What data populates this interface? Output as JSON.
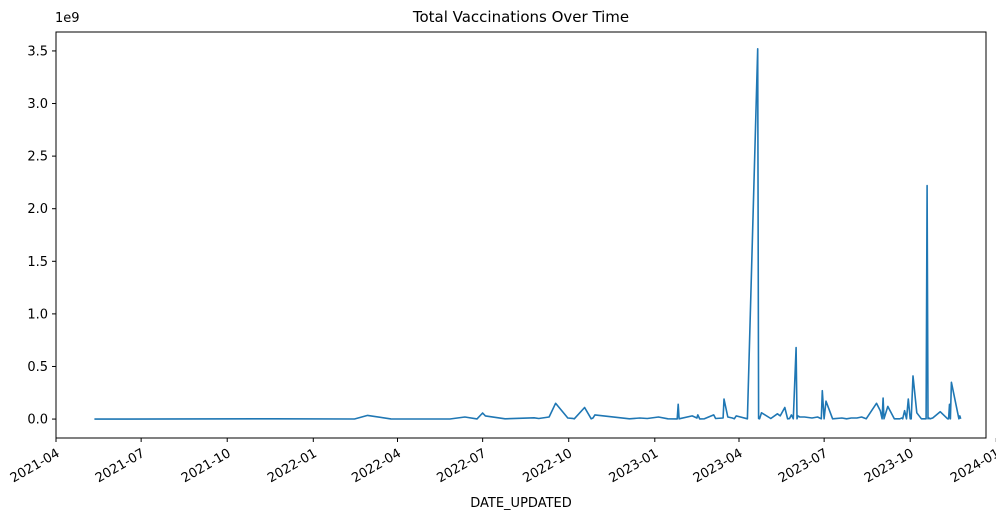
{
  "chart_data": {
    "type": "line",
    "title": "Total Vaccinations Over Time",
    "xlabel": "DATE_UPDATED",
    "ylabel": "",
    "y_offset_text": "1e9",
    "ylim": [
      -0.18,
      3.68
    ],
    "xlim": [
      "2021-04-01",
      "2023-12-21"
    ],
    "grid": false,
    "series_color": "#1f77b4",
    "y_ticks": [
      0.0,
      0.5,
      1.0,
      1.5,
      2.0,
      2.5,
      3.0,
      3.5
    ],
    "y_tick_labels": [
      "0.0",
      "0.5",
      "1.0",
      "1.5",
      "2.0",
      "2.5",
      "3.0",
      "3.5"
    ],
    "x_ticks": [
      "2021-04-01",
      "2021-07-01",
      "2021-10-01",
      "2022-01-01",
      "2022-04-01",
      "2022-07-01",
      "2022-10-01",
      "2023-01-01",
      "2023-04-01",
      "2023-07-01",
      "2023-10-01",
      "2024-01-01"
    ],
    "x_tick_labels": [
      "2021-04",
      "2021-07",
      "2021-10",
      "2022-01",
      "2022-04",
      "2022-07",
      "2022-10",
      "2023-01",
      "2023-04",
      "2023-07",
      "2023-10",
      "2024-01"
    ],
    "series": [
      {
        "x": [
          "2021-05-12",
          "2021-11-20",
          "2022-02-14",
          "2022-02-28",
          "2022-03-25",
          "2022-05-27",
          "2022-06-12",
          "2022-06-25",
          "2022-07-01",
          "2022-07-04",
          "2022-07-25",
          "2022-08-25",
          "2022-08-30",
          "2022-09-10",
          "2022-09-17",
          "2022-09-30",
          "2022-10-05",
          "2022-10-07",
          "2022-10-18",
          "2022-10-25",
          "2022-10-27",
          "2022-10-29",
          "2022-12-05",
          "2022-12-16",
          "2022-12-24",
          "2023-01-05",
          "2023-01-15",
          "2023-01-25",
          "2023-01-26",
          "2023-01-27",
          "2023-02-10",
          "2023-02-15",
          "2023-02-16",
          "2023-02-18",
          "2023-02-23",
          "2023-03-05",
          "2023-03-07",
          "2023-03-15",
          "2023-03-16",
          "2023-03-20",
          "2023-03-25",
          "2023-03-27",
          "2023-03-29",
          "2023-04-10",
          "2023-04-21",
          "2023-04-22",
          "2023-04-23",
          "2023-04-25",
          "2023-05-05",
          "2023-05-12",
          "2023-05-15",
          "2023-05-20",
          "2023-05-23",
          "2023-05-25",
          "2023-05-27",
          "2023-05-29",
          "2023-06-01",
          "2023-06-02",
          "2023-06-03",
          "2023-06-05",
          "2023-06-10",
          "2023-06-18",
          "2023-06-24",
          "2023-06-28",
          "2023-06-29",
          "2023-07-01",
          "2023-07-03",
          "2023-07-10",
          "2023-07-20",
          "2023-07-25",
          "2023-07-30",
          "2023-08-05",
          "2023-08-10",
          "2023-08-15",
          "2023-08-26",
          "2023-08-30",
          "2023-09-01",
          "2023-09-02",
          "2023-09-03",
          "2023-09-07",
          "2023-09-14",
          "2023-09-20",
          "2023-09-22",
          "2023-09-23",
          "2023-09-25",
          "2023-09-27",
          "2023-09-29",
          "2023-10-01",
          "2023-10-02",
          "2023-10-04",
          "2023-10-08",
          "2023-10-13",
          "2023-10-18",
          "2023-10-19",
          "2023-10-20",
          "2023-10-21",
          "2023-10-22",
          "2023-10-25",
          "2023-11-02",
          "2023-11-10",
          "2023-11-11",
          "2023-11-12",
          "2023-11-13",
          "2023-11-14",
          "2023-11-22",
          "2023-11-23",
          "2023-11-24"
        ],
        "y": [
          0.0,
          0.003,
          0.001,
          0.035,
          0.002,
          0.001,
          0.02,
          0.002,
          0.058,
          0.03,
          0.003,
          0.012,
          0.005,
          0.02,
          0.15,
          0.01,
          0.006,
          0.003,
          0.11,
          0.003,
          0.01,
          0.04,
          0.003,
          0.01,
          0.005,
          0.02,
          0.003,
          0.002,
          0.14,
          0.003,
          0.03,
          0.01,
          0.04,
          0.002,
          0.003,
          0.04,
          0.005,
          0.01,
          0.19,
          0.02,
          0.01,
          0.003,
          0.03,
          0.003,
          3.52,
          0.005,
          0.003,
          0.06,
          0.005,
          0.05,
          0.03,
          0.11,
          0.003,
          0.004,
          0.04,
          0.003,
          0.68,
          0.003,
          0.03,
          0.02,
          0.02,
          0.01,
          0.02,
          0.003,
          0.27,
          0.003,
          0.17,
          0.003,
          0.01,
          0.003,
          0.01,
          0.01,
          0.02,
          0.003,
          0.15,
          0.08,
          0.003,
          0.2,
          0.003,
          0.12,
          0.003,
          0.003,
          0.01,
          0.003,
          0.08,
          0.003,
          0.19,
          0.003,
          0.003,
          0.41,
          0.06,
          0.003,
          0.003,
          2.22,
          0.003,
          0.01,
          0.003,
          0.01,
          0.07,
          0.003,
          0.003,
          0.14,
          0.003,
          0.35,
          0.003,
          0.03,
          0.003
        ]
      }
    ]
  }
}
